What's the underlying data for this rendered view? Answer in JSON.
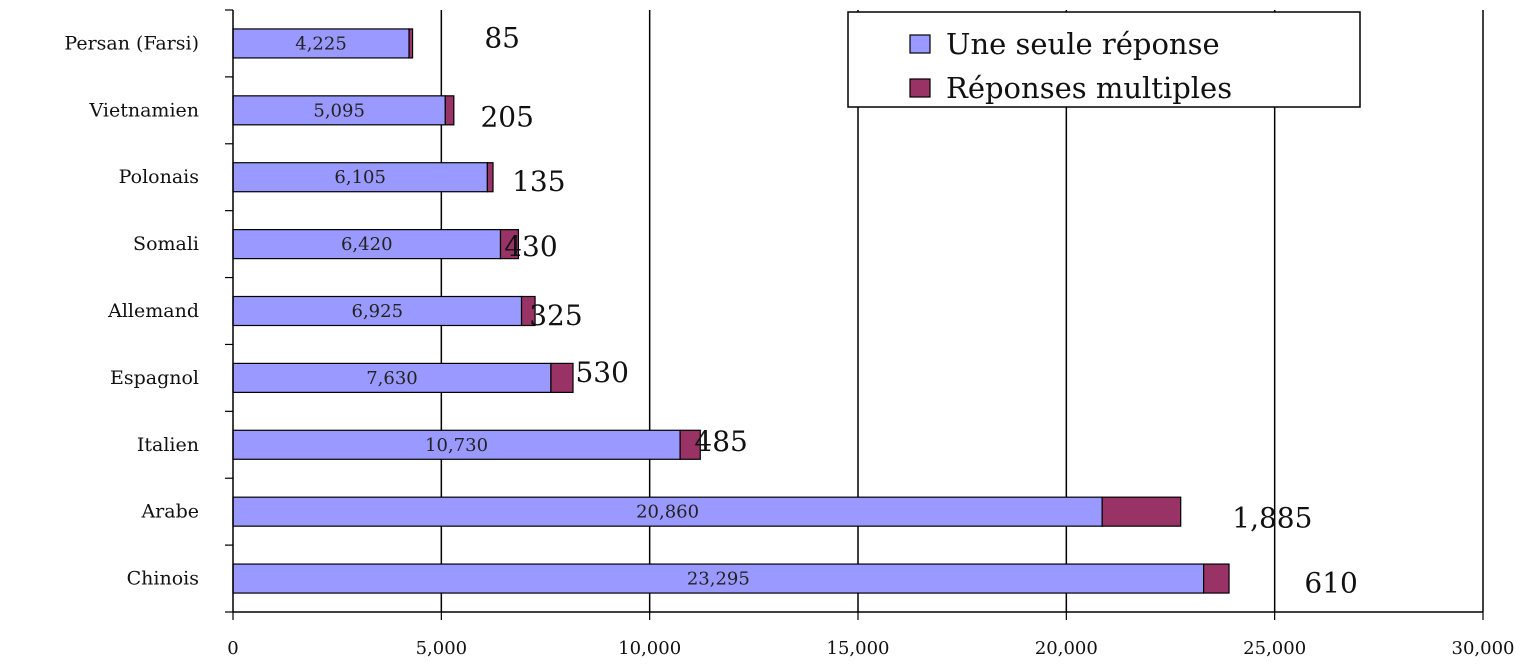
{
  "chart_data": {
    "type": "bar",
    "orientation": "horizontal",
    "stacked": true,
    "categories": [
      "Persan (Farsi)",
      "Vietnamien",
      "Polonais",
      "Somali",
      "Allemand",
      "Espagnol",
      "Italien",
      "Arabe",
      "Chinois"
    ],
    "series": [
      {
        "name": "Une seule réponse",
        "color": "#9999ff",
        "values": [
          4225,
          5095,
          6105,
          6420,
          6925,
          7630,
          10730,
          20860,
          23295
        ],
        "labels": [
          "4,225",
          "5,095",
          "6,105",
          "6,420",
          "6,925",
          "7,630",
          "10,730",
          "20,860",
          "23,295"
        ]
      },
      {
        "name": "Réponses multiples",
        "color": "#993366",
        "values": [
          85,
          205,
          135,
          430,
          325,
          530,
          485,
          1885,
          610
        ],
        "labels": [
          "85",
          "205",
          "135",
          "430",
          "325",
          "530",
          "485",
          "1,885",
          "610"
        ]
      }
    ],
    "xlim": [
      0,
      30000
    ],
    "xticks": [
      0,
      5000,
      10000,
      15000,
      20000,
      25000,
      30000
    ],
    "xtick_labels": [
      "0",
      "5,000",
      "10,000",
      "15,000",
      "20,000",
      "25,000",
      "30,000"
    ],
    "grid": "vertical major gridlines",
    "legend_position": "top-right",
    "title": "",
    "xlabel": "",
    "ylabel": ""
  }
}
